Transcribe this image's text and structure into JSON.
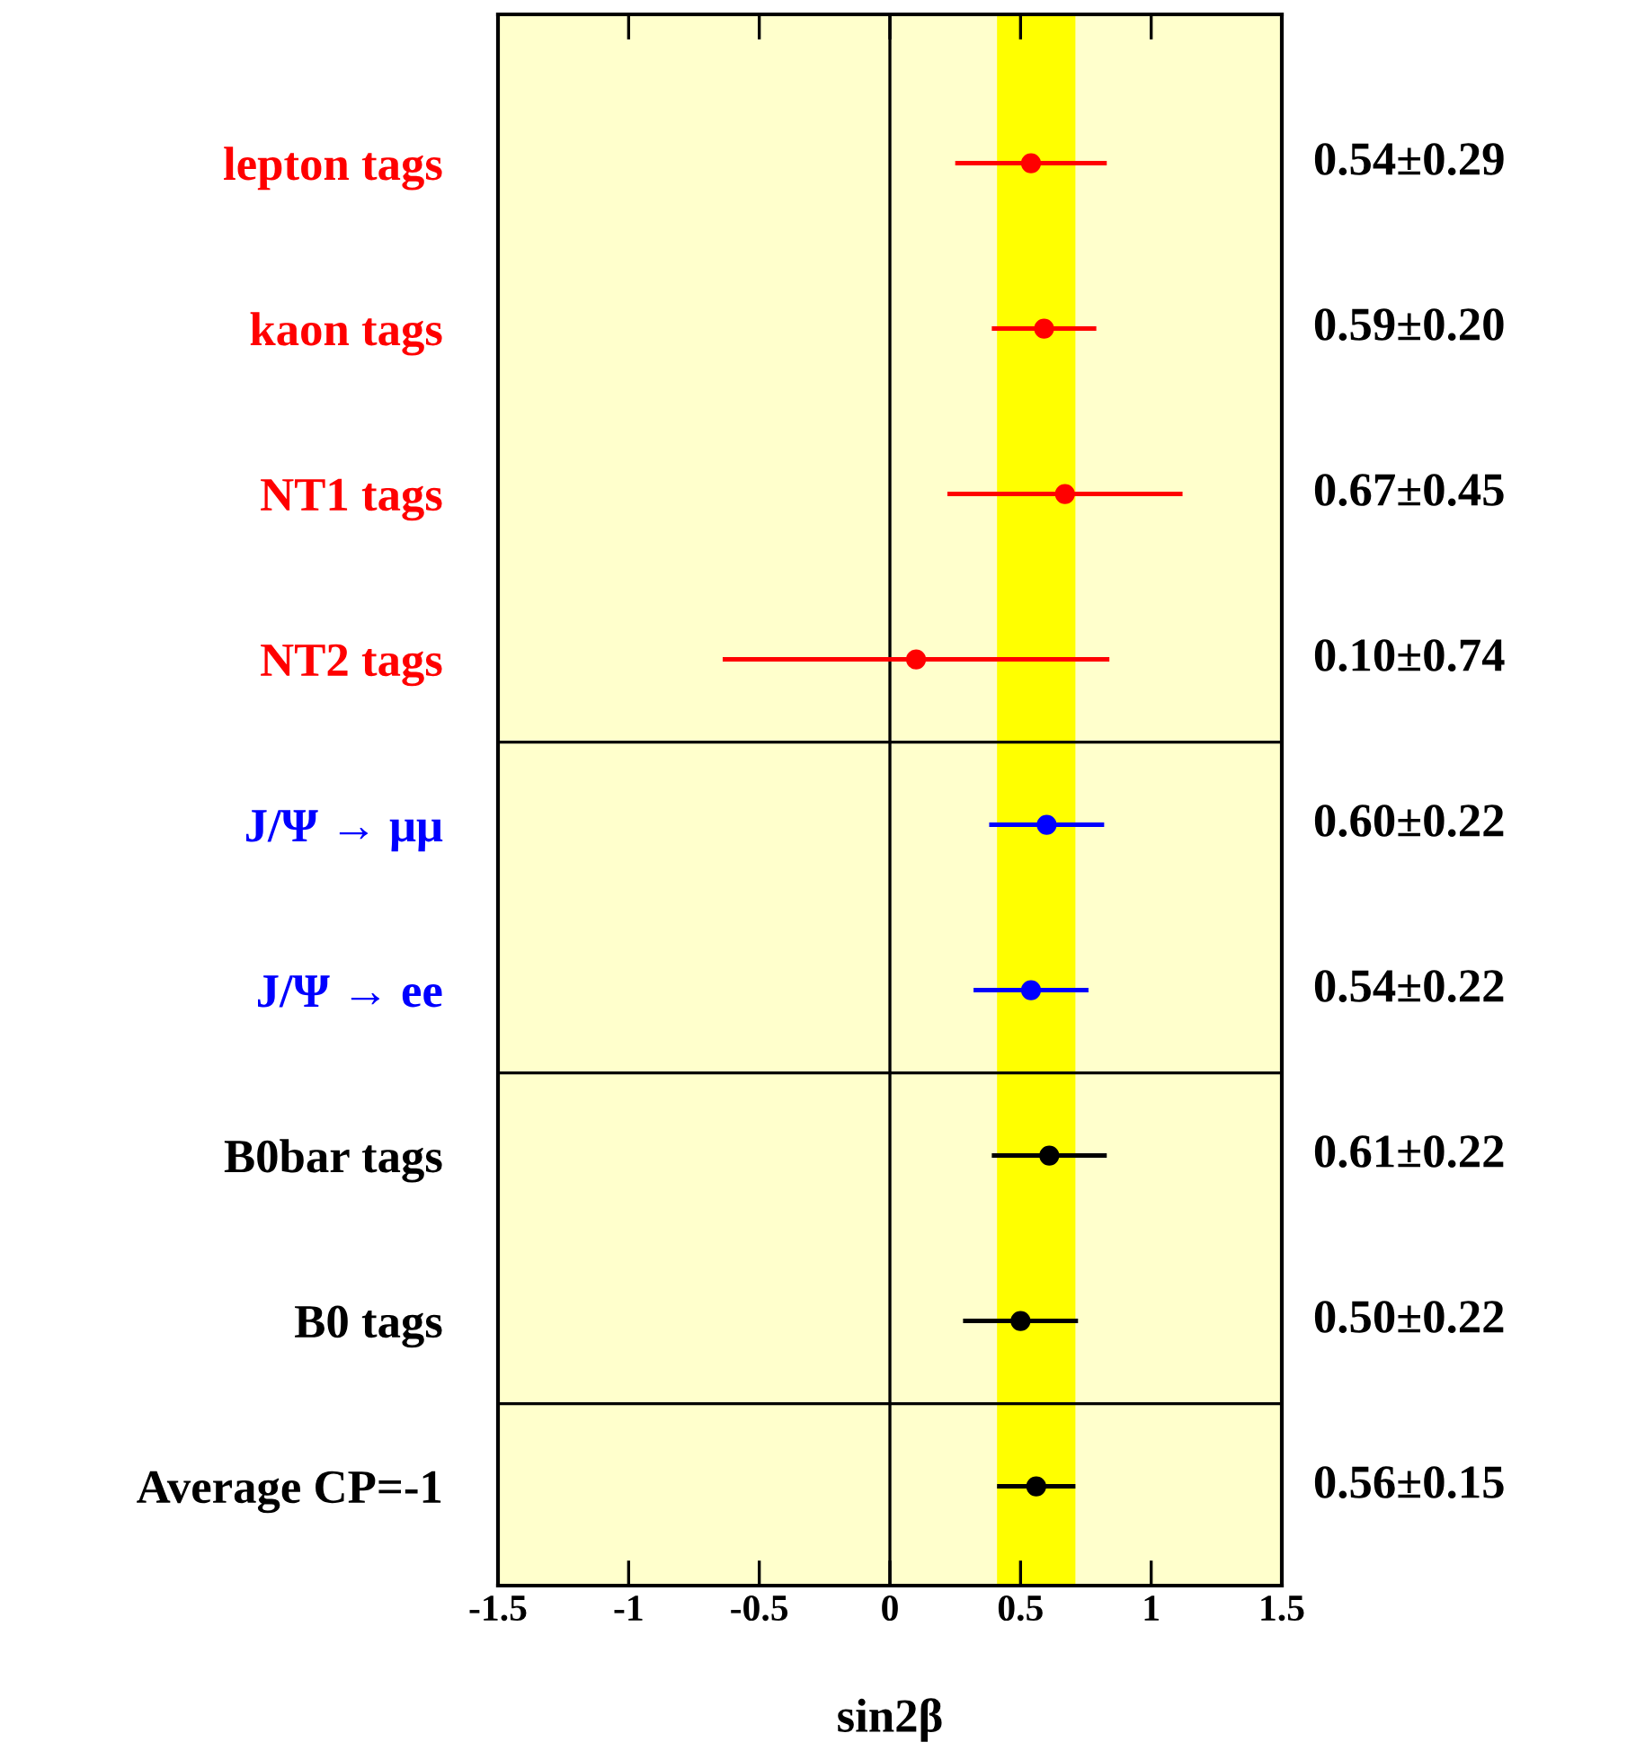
{
  "chart_data": {
    "type": "scatter",
    "orientation": "horizontal",
    "xlabel": "sin2β",
    "categories": [
      "lepton tags",
      "kaon tags",
      "NT1 tags",
      "NT2 tags",
      "J/Ψ → μμ",
      "J/Ψ → ee",
      "B0bar tags",
      "B0 tags",
      "Average CP=-1"
    ],
    "values": [
      0.54,
      0.59,
      0.67,
      0.1,
      0.6,
      0.54,
      0.61,
      0.5,
      0.56
    ],
    "errors": [
      0.29,
      0.2,
      0.45,
      0.74,
      0.22,
      0.22,
      0.22,
      0.22,
      0.15
    ],
    "colors": [
      "#ff0000",
      "#ff0000",
      "#ff0000",
      "#ff0000",
      "#0000ff",
      "#0000ff",
      "#000000",
      "#000000",
      "#000000"
    ],
    "value_labels": [
      "0.54±0.29",
      "0.59±0.20",
      "0.67±0.45",
      "0.10±0.74",
      "0.60±0.22",
      "0.54±0.22",
      "0.61±0.22",
      "0.50±0.22",
      "0.56±0.15"
    ],
    "xlim": [
      -1.5,
      1.5
    ],
    "xticks": [
      -1.5,
      -1,
      -0.5,
      0,
      0.5,
      1,
      1.5
    ],
    "marker": "circle",
    "grid": false,
    "bands": [
      {
        "axis": "x",
        "from": 0.41,
        "to": 0.71,
        "color": "#ffff00"
      }
    ],
    "ref_lines": [
      {
        "axis": "x",
        "value": 0,
        "color": "#000000"
      }
    ]
  }
}
